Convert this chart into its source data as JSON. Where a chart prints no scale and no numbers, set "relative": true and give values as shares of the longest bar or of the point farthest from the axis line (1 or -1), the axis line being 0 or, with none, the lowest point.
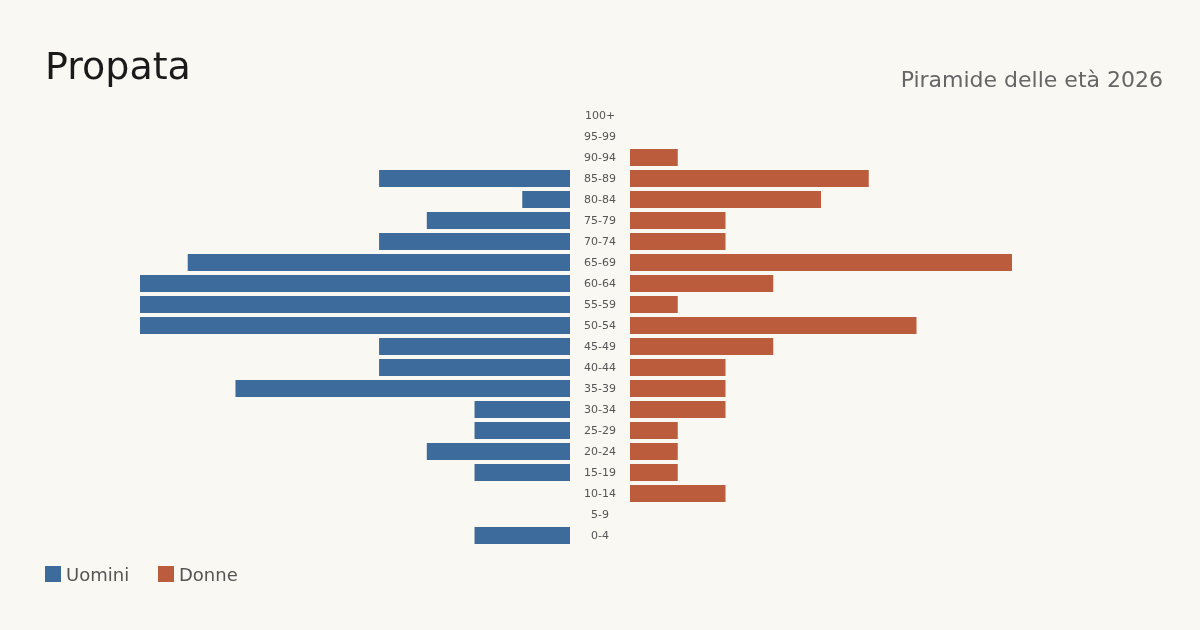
{
  "chart_data": [
    {
      "type": "bar",
      "title": "Propata",
      "orientation": "horizontal",
      "relative": true,
      "legend": "bottom left",
      "categories": [
        "100+",
        "95-99",
        "90-94",
        "85-89",
        "80-84",
        "75-79",
        "70-74",
        "65-69",
        "60-64",
        "55-59",
        "50-54",
        "45-49",
        "40-44",
        "35-39",
        "30-34",
        "25-29",
        "20-24",
        "15-19",
        "10-14",
        "5-9",
        "0-4"
      ],
      "series": [
        {
          "name": "Uomini",
          "color": "#3d6b9c",
          "values": [
            0,
            0,
            0,
            0.444,
            0.111,
            0.333,
            0.444,
            0.889,
            1,
            1,
            1,
            0.444,
            0.444,
            0.778,
            0.222,
            0.222,
            0.333,
            0.222,
            0,
            0,
            0.222
          ]
        }
      ]
    },
    {
      "type": "bar",
      "subtitle": "Piramide delle età 2026",
      "orientation": "horizontal",
      "relative": true,
      "legend": "bottom left",
      "categories": [
        null,
        null,
        null,
        null,
        null,
        null,
        null,
        null,
        null,
        null,
        null,
        null,
        null,
        null,
        null,
        null,
        null,
        null,
        null,
        null,
        null
      ],
      "series": [
        {
          "name": "Donne",
          "color": "#bb5c3c",
          "values": [
            0,
            0,
            0.125,
            0.625,
            0.5,
            0.25,
            0.25,
            1,
            0.375,
            0.125,
            0.75,
            0.375,
            0.25,
            0.25,
            0.25,
            0.125,
            0.125,
            0.125,
            0.25,
            0,
            0
          ]
        }
      ]
    }
  ]
}
